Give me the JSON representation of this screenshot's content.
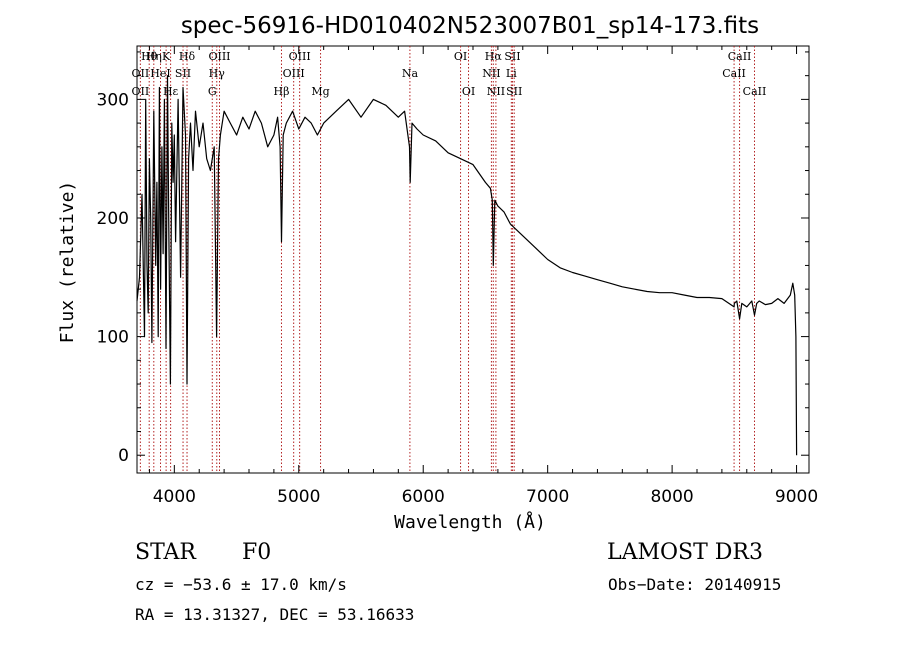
{
  "chart_data": {
    "type": "line",
    "title": "spec-56916-HD010402N523007B01_sp14-173.fits",
    "xlabel": "Wavelength (Å)",
    "ylabel": "Flux (relative)",
    "xlim": [
      3700,
      9100
    ],
    "ylim": [
      -15,
      345
    ],
    "xticks": [
      4000,
      5000,
      6000,
      7000,
      8000,
      9000
    ],
    "yticks": [
      0,
      100,
      200,
      300
    ],
    "series": [
      {
        "name": "spectrum",
        "x": [
          3700,
          3720,
          3740,
          3760,
          3770,
          3780,
          3790,
          3800,
          3810,
          3820,
          3835,
          3850,
          3860,
          3870,
          3880,
          3890,
          3900,
          3910,
          3920,
          3933,
          3945,
          3955,
          3968,
          3980,
          3990,
          4000,
          4010,
          4030,
          4050,
          4070,
          4090,
          4102,
          4115,
          4130,
          4150,
          4170,
          4200,
          4230,
          4260,
          4290,
          4320,
          4340,
          4355,
          4370,
          4400,
          4450,
          4500,
          4550,
          4600,
          4650,
          4700,
          4750,
          4800,
          4830,
          4850,
          4861,
          4875,
          4900,
          4950,
          5000,
          5050,
          5100,
          5150,
          5200,
          5300,
          5400,
          5500,
          5600,
          5700,
          5800,
          5850,
          5890,
          5895,
          5910,
          5950,
          6000,
          6100,
          6200,
          6300,
          6400,
          6500,
          6540,
          6555,
          6563,
          6575,
          6600,
          6650,
          6700,
          6800,
          6900,
          7000,
          7100,
          7200,
          7300,
          7400,
          7500,
          7600,
          7700,
          7800,
          7900,
          8000,
          8100,
          8200,
          8300,
          8400,
          8498,
          8500,
          8520,
          8542,
          8560,
          8600,
          8640,
          8662,
          8680,
          8700,
          8750,
          8800,
          8850,
          8900,
          8950,
          8970,
          8985,
          8995,
          9000
        ],
        "y": [
          130,
          150,
          220,
          100,
          300,
          160,
          120,
          250,
          200,
          95,
          290,
          160,
          230,
          100,
          310,
          140,
          260,
          170,
          300,
          90,
          320,
          200,
          60,
          280,
          230,
          270,
          180,
          300,
          150,
          310,
          270,
          60,
          250,
          280,
          240,
          290,
          260,
          280,
          250,
          240,
          260,
          100,
          250,
          270,
          290,
          280,
          270,
          285,
          275,
          290,
          280,
          260,
          270,
          285,
          260,
          180,
          270,
          280,
          290,
          275,
          285,
          280,
          270,
          280,
          290,
          300,
          285,
          300,
          295,
          285,
          290,
          260,
          230,
          280,
          275,
          270,
          265,
          255,
          250,
          245,
          230,
          225,
          215,
          160,
          215,
          210,
          205,
          195,
          185,
          175,
          165,
          158,
          154,
          151,
          148,
          145,
          142,
          140,
          138,
          137,
          137,
          135,
          133,
          133,
          132,
          125,
          128,
          130,
          115,
          128,
          125,
          130,
          118,
          128,
          130,
          127,
          128,
          132,
          128,
          135,
          145,
          135,
          100,
          0
        ]
      }
    ],
    "line_markers": [
      {
        "label": "Hη",
        "x": 3835,
        "row": 0
      },
      {
        "label": "OII",
        "x": 3727,
        "row": 1
      },
      {
        "label": "OII",
        "x": 3727,
        "row": 2
      },
      {
        "label": "Hθ",
        "x": 3798,
        "row": 0
      },
      {
        "label": "HeI",
        "x": 3889,
        "row": 1
      },
      {
        "label": "K",
        "x": 3934,
        "row": 0
      },
      {
        "label": "Hε",
        "x": 3970,
        "row": 2
      },
      {
        "label": "SII",
        "x": 4070,
        "row": 1
      },
      {
        "label": "Hδ",
        "x": 4102,
        "row": 0
      },
      {
        "label": "OIII",
        "x": 4363,
        "row": 0
      },
      {
        "label": "Hγ",
        "x": 4341,
        "row": 1
      },
      {
        "label": "G",
        "x": 4305,
        "row": 2
      },
      {
        "label": "Hβ",
        "x": 4861,
        "row": 2
      },
      {
        "label": "OIII",
        "x": 5007,
        "row": 0
      },
      {
        "label": "OIII",
        "x": 4959,
        "row": 1
      },
      {
        "label": "Mg",
        "x": 5175,
        "row": 2
      },
      {
        "label": "Na",
        "x": 5893,
        "row": 1
      },
      {
        "label": "OI",
        "x": 6300,
        "row": 0
      },
      {
        "label": "OI",
        "x": 6364,
        "row": 2
      },
      {
        "label": "Hα",
        "x": 6563,
        "row": 0
      },
      {
        "label": "NII",
        "x": 6548,
        "row": 1
      },
      {
        "label": "NII",
        "x": 6584,
        "row": 2
      },
      {
        "label": "SII",
        "x": 6717,
        "row": 0
      },
      {
        "label": "Li",
        "x": 6708,
        "row": 1
      },
      {
        "label": "SII",
        "x": 6731,
        "row": 2
      },
      {
        "label": "CaII",
        "x": 8542,
        "row": 0
      },
      {
        "label": "CaII",
        "x": 8498,
        "row": 1
      },
      {
        "label": "CaII",
        "x": 8662,
        "row": 2
      }
    ]
  },
  "info": {
    "object_class": "STAR",
    "subclass": "F0",
    "survey": "LAMOST DR3",
    "cz": "cz = −53.6 ± 17.0 km/s",
    "obs_date": "Obs−Date: 20140915",
    "coords": "RA =  13.31327, DEC =  53.16633"
  },
  "colors": {
    "spectrum": "#000000",
    "marker_line": "#b22222",
    "background": "#ffffff"
  }
}
